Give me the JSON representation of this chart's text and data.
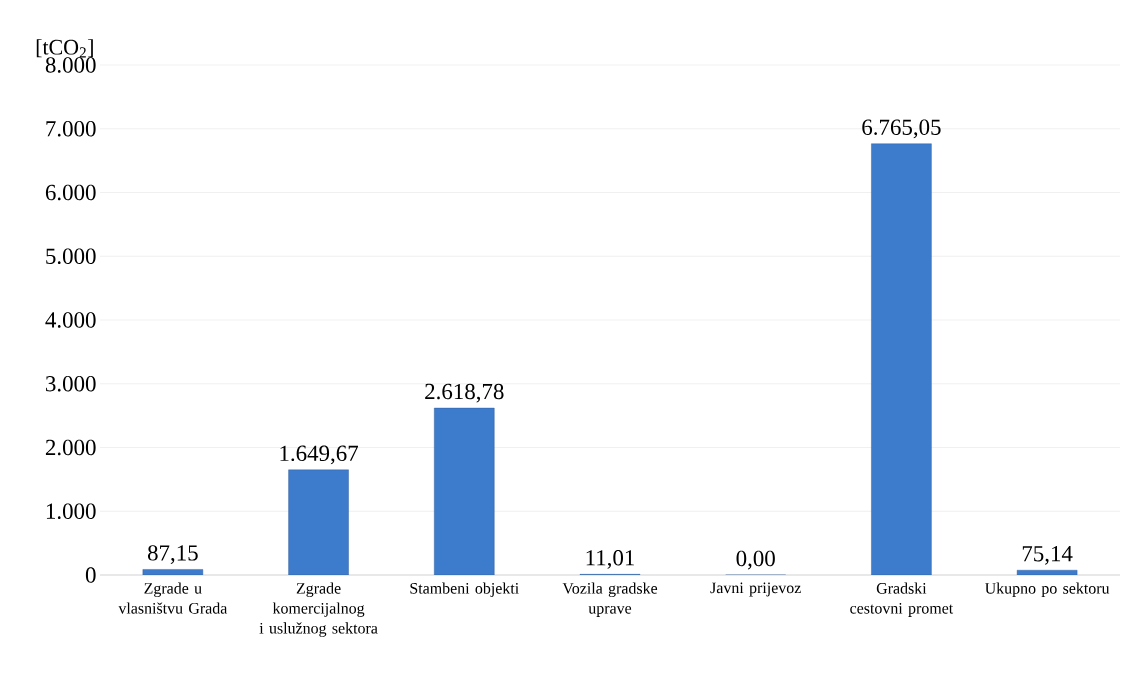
{
  "chart_data": {
    "type": "bar",
    "ylabel": "[tCO$_{2}$]",
    "categories": [
      "Zgrade u vlasništvu Grada",
      "Zgrade komercijalnog i uslužnog sektora",
      "Stambeni objekti",
      "Vozila gradske uprave",
      "Javni prijevoz",
      "Gradski cestovni promet",
      "Ukupno po sektoru"
    ],
    "values": [
      87.15,
      1649.67,
      2618.78,
      11.01,
      0.0,
      6765.05,
      75.14
    ],
    "value_labels": [
      "87,15",
      "1.649,67",
      "2.618,78",
      "11,01",
      "0,00",
      "6.765,05",
      "75,14"
    ],
    "color": "#3d7bcc",
    "ylim": [
      0,
      8000
    ],
    "yticks": [
      0,
      {
        "value": 1000,
        "label": "1.000"
      },
      {
        "value": 2000,
        "label": "2.000"
      },
      {
        "value": 3000,
        "label": "3.000"
      },
      {
        "value": 4000,
        "label": "4.000"
      },
      {
        "value": 5000,
        "label": "5.000"
      },
      {
        "value": 6000,
        "label": "6.000"
      },
      {
        "value": 7000,
        "label": "7.000"
      },
      {
        "value": 8000,
        "label": "8.000"
      }
    ],
    "grid": "y"
  }
}
